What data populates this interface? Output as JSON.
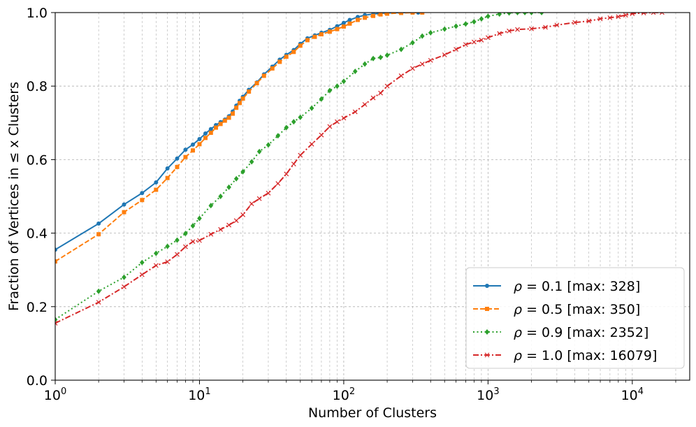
{
  "chart_data": {
    "type": "line",
    "title": "",
    "xlabel": "Number of Clusters",
    "ylabel": "Fraction of Vertices in ≤ x Clusters",
    "xscale": "log",
    "xlim": [
      1,
      25000
    ],
    "ylim": [
      0.0,
      1.0
    ],
    "grid": true,
    "legend_position": "lower-right",
    "x_ticks": [
      {
        "value": 1,
        "base": "10",
        "exp": "0"
      },
      {
        "value": 10,
        "base": "10",
        "exp": "1"
      },
      {
        "value": 100,
        "base": "10",
        "exp": "2"
      },
      {
        "value": 1000,
        "base": "10",
        "exp": "3"
      },
      {
        "value": 10000,
        "base": "10",
        "exp": "4"
      }
    ],
    "y_ticks": [
      {
        "value": 0.0,
        "label": "0.0"
      },
      {
        "value": 0.2,
        "label": "0.2"
      },
      {
        "value": 0.4,
        "label": "0.4"
      },
      {
        "value": 0.6,
        "label": "0.6"
      },
      {
        "value": 0.8,
        "label": "0.8"
      },
      {
        "value": 1.0,
        "label": "1.0"
      }
    ],
    "series": [
      {
        "name": "rho-0.1",
        "legend_symbol": "ρ",
        "legend_text": " = 0.1 [max: 328]",
        "color": "#1f77b4",
        "linestyle": "solid",
        "marker": "circle",
        "x": [
          1,
          2,
          3,
          4,
          5,
          6,
          7,
          8,
          9,
          10,
          11,
          12,
          13,
          14,
          15,
          16,
          17,
          18,
          19,
          20,
          22,
          25,
          28,
          32,
          36,
          40,
          45,
          50,
          56,
          63,
          70,
          80,
          90,
          100,
          110,
          125,
          140,
          160,
          180,
          200,
          250,
          300,
          328
        ],
        "y": [
          0.355,
          0.426,
          0.478,
          0.509,
          0.538,
          0.576,
          0.603,
          0.627,
          0.641,
          0.656,
          0.671,
          0.683,
          0.694,
          0.702,
          0.709,
          0.718,
          0.731,
          0.747,
          0.76,
          0.771,
          0.79,
          0.81,
          0.832,
          0.853,
          0.872,
          0.885,
          0.898,
          0.915,
          0.93,
          0.938,
          0.945,
          0.953,
          0.963,
          0.972,
          0.98,
          0.988,
          0.993,
          0.996,
          0.998,
          0.999,
          1.0,
          1.0,
          1.0
        ]
      },
      {
        "name": "rho-0.5",
        "legend_symbol": "ρ",
        "legend_text": " = 0.5 [max: 350]",
        "color": "#ff7f0e",
        "linestyle": "dashed",
        "marker": "square",
        "x": [
          1,
          2,
          3,
          4,
          5,
          6,
          7,
          8,
          9,
          10,
          11,
          12,
          13,
          14,
          15,
          16,
          17,
          18,
          19,
          20,
          22,
          25,
          28,
          32,
          36,
          40,
          45,
          50,
          56,
          63,
          70,
          80,
          90,
          100,
          110,
          125,
          140,
          160,
          180,
          200,
          250,
          300,
          350
        ],
        "y": [
          0.323,
          0.397,
          0.457,
          0.49,
          0.518,
          0.55,
          0.58,
          0.607,
          0.625,
          0.642,
          0.659,
          0.673,
          0.687,
          0.697,
          0.706,
          0.714,
          0.725,
          0.741,
          0.754,
          0.766,
          0.785,
          0.808,
          0.828,
          0.848,
          0.866,
          0.88,
          0.893,
          0.91,
          0.925,
          0.934,
          0.941,
          0.948,
          0.955,
          0.962,
          0.97,
          0.98,
          0.986,
          0.991,
          0.995,
          0.997,
          0.999,
          1.0,
          1.0
        ]
      },
      {
        "name": "rho-0.9",
        "legend_symbol": "ρ",
        "legend_text": " = 0.9 [max: 2352]",
        "color": "#2ca02c",
        "linestyle": "dotted",
        "marker": "diamond",
        "x": [
          1,
          2,
          3,
          4,
          5,
          6,
          7,
          8,
          9,
          10,
          12,
          14,
          16,
          18,
          20,
          23,
          26,
          30,
          35,
          40,
          45,
          50,
          60,
          70,
          80,
          90,
          100,
          120,
          140,
          160,
          180,
          200,
          250,
          300,
          350,
          400,
          500,
          600,
          700,
          800,
          900,
          1000,
          1200,
          1400,
          1600,
          1800,
          2000,
          2352
        ],
        "y": [
          0.165,
          0.242,
          0.28,
          0.32,
          0.345,
          0.364,
          0.381,
          0.399,
          0.42,
          0.44,
          0.475,
          0.5,
          0.525,
          0.548,
          0.567,
          0.594,
          0.622,
          0.64,
          0.665,
          0.687,
          0.703,
          0.715,
          0.74,
          0.765,
          0.788,
          0.8,
          0.813,
          0.84,
          0.86,
          0.875,
          0.878,
          0.884,
          0.9,
          0.918,
          0.936,
          0.945,
          0.955,
          0.963,
          0.969,
          0.975,
          0.983,
          0.99,
          0.996,
          0.999,
          1.0,
          1.0,
          1.0,
          1.0
        ]
      },
      {
        "name": "rho-1.0",
        "legend_symbol": "ρ",
        "legend_text": " = 1.0 [max: 16079]",
        "color": "#d62728",
        "linestyle": "dashdot",
        "marker": "x",
        "x": [
          1,
          2,
          3,
          4,
          5,
          6,
          7,
          8,
          9,
          10,
          12,
          14,
          16,
          18,
          20,
          23,
          26,
          30,
          35,
          40,
          45,
          50,
          60,
          70,
          80,
          90,
          100,
          120,
          140,
          160,
          180,
          200,
          250,
          300,
          350,
          400,
          500,
          600,
          700,
          800,
          900,
          1000,
          1200,
          1400,
          1600,
          2000,
          2500,
          3000,
          4000,
          5000,
          6000,
          7000,
          8000,
          9000,
          10000,
          12000,
          14000,
          16079
        ],
        "y": [
          0.155,
          0.212,
          0.254,
          0.287,
          0.312,
          0.322,
          0.342,
          0.363,
          0.377,
          0.38,
          0.397,
          0.41,
          0.422,
          0.434,
          0.45,
          0.48,
          0.494,
          0.509,
          0.535,
          0.561,
          0.588,
          0.612,
          0.642,
          0.667,
          0.69,
          0.703,
          0.713,
          0.73,
          0.75,
          0.768,
          0.781,
          0.8,
          0.828,
          0.848,
          0.86,
          0.87,
          0.885,
          0.9,
          0.913,
          0.92,
          0.925,
          0.932,
          0.943,
          0.95,
          0.954,
          0.956,
          0.96,
          0.966,
          0.973,
          0.977,
          0.983,
          0.986,
          0.989,
          0.993,
          0.997,
          0.999,
          1.0,
          1.0
        ]
      }
    ]
  }
}
